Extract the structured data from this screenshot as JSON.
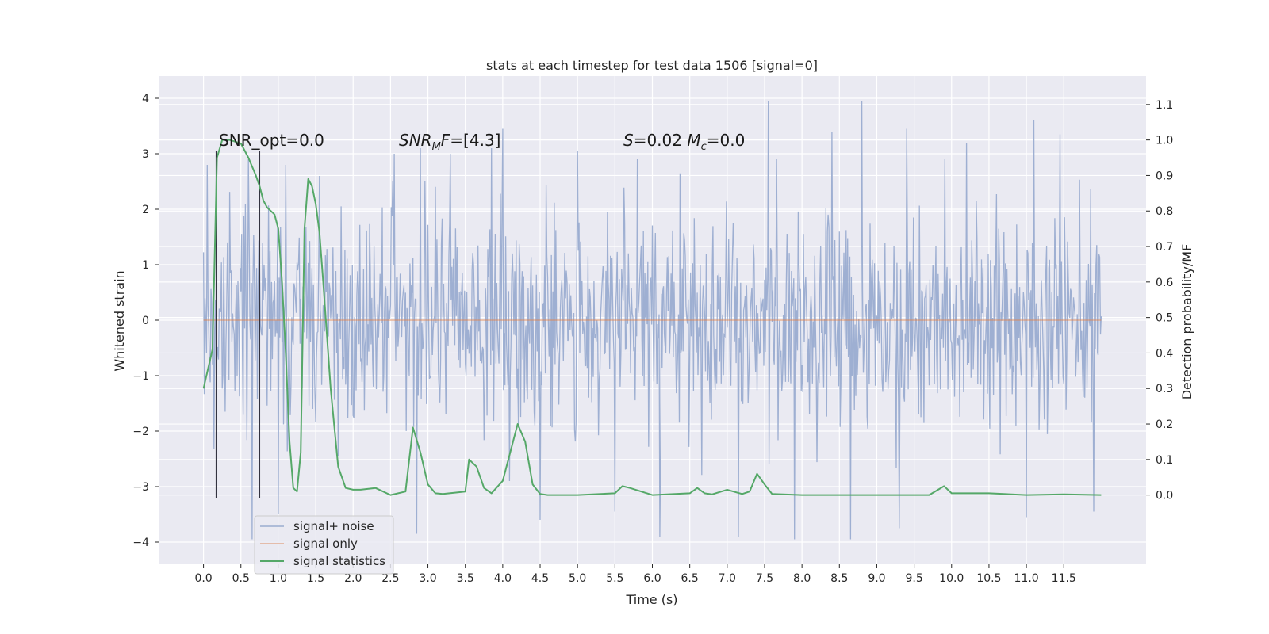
{
  "chart_data": {
    "type": "line",
    "title": "stats at each timestep for test data 1506 [signal=0]",
    "xlabel": "Time (s)",
    "ylabel_left": "Whitened strain",
    "ylabel_right": "Detection probability/MF",
    "xlim": [
      -0.6,
      12.6
    ],
    "ylim_left": [
      -4.4,
      4.4
    ],
    "ylim_right": [
      -0.195,
      1.18
    ],
    "x_ticks": [
      "0.0",
      "0.5",
      "1.0",
      "1.5",
      "2.0",
      "2.5",
      "3.0",
      "3.5",
      "4.0",
      "4.5",
      "5.0",
      "5.5",
      "6.0",
      "6.5",
      "7.0",
      "7.5",
      "8.0",
      "8.5",
      "9.0",
      "9.5",
      "10.0",
      "10.5",
      "11.0",
      "11.5"
    ],
    "y_ticks_left": [
      "4",
      "3",
      "2",
      "1",
      "0",
      "−1",
      "−2",
      "−3",
      "−4"
    ],
    "y_ticks_right": [
      "1.1",
      "1.0",
      "0.9",
      "0.8",
      "0.7",
      "0.6",
      "0.5",
      "0.4",
      "0.3",
      "0.2",
      "0.1",
      "0.0"
    ],
    "grid": true,
    "legend_position": "lower-left",
    "annotations": [
      {
        "label": "SNR_opt=0.0",
        "x": 0.2,
        "y": 3.05
      },
      {
        "label": "SNR_MF=[4.3]",
        "x": 2.6,
        "y": 3.05
      },
      {
        "label": "S=0.02   M_c=0.0",
        "x": 5.6,
        "y": 3.05
      }
    ],
    "vertical_lines": [
      0.17,
      0.75
    ],
    "series": [
      {
        "name": "signal+ noise",
        "color": "#9aacd0",
        "x_range": [
          0.0,
          12.0
        ],
        "envelope_dense": [
          -1.2,
          1.2
        ],
        "typical_extremes": [
          -2.6,
          2.6
        ],
        "peaks": [
          [
            0.05,
            2.8
          ],
          [
            0.6,
            2.9
          ],
          [
            1.1,
            2.8
          ],
          [
            1.55,
            2.6
          ],
          [
            2.55,
            3.0
          ],
          [
            2.9,
            3.1
          ],
          [
            3.3,
            3.0
          ],
          [
            3.85,
            3.1
          ],
          [
            4.0,
            3.45
          ],
          [
            5.0,
            3.05
          ],
          [
            5.8,
            2.9
          ],
          [
            7.55,
            3.95
          ],
          [
            8.4,
            3.4
          ],
          [
            8.8,
            3.95
          ],
          [
            9.4,
            3.45
          ],
          [
            10.2,
            3.2
          ],
          [
            11.1,
            3.6
          ],
          [
            11.45,
            3.35
          ],
          [
            0.65,
            -3.95
          ],
          [
            1.0,
            -3.5
          ],
          [
            2.85,
            -3.85
          ],
          [
            4.5,
            -3.6
          ],
          [
            5.5,
            -3.45
          ],
          [
            6.1,
            -3.9
          ],
          [
            7.15,
            -3.9
          ],
          [
            7.9,
            -3.95
          ],
          [
            8.65,
            -3.95
          ],
          [
            9.3,
            -3.75
          ],
          [
            11.0,
            -3.55
          ],
          [
            11.9,
            -3.45
          ]
        ]
      },
      {
        "name": "signal only",
        "color": "#dd8452",
        "x": [
          0.0,
          12.0
        ],
        "y": [
          0.0,
          0.0
        ]
      },
      {
        "name": "signal statistics",
        "color": "#55a868",
        "axis": "right",
        "x": [
          0.0,
          0.12,
          0.18,
          0.25,
          0.35,
          0.5,
          0.6,
          0.7,
          0.75,
          0.8,
          0.85,
          0.9,
          0.95,
          1.0,
          1.05,
          1.1,
          1.15,
          1.2,
          1.25,
          1.3,
          1.35,
          1.4,
          1.45,
          1.5,
          1.55,
          1.6,
          1.7,
          1.8,
          1.9,
          2.0,
          2.1,
          2.3,
          2.5,
          2.7,
          2.8,
          2.9,
          3.0,
          3.1,
          3.2,
          3.5,
          3.55,
          3.65,
          3.75,
          3.85,
          4.0,
          4.1,
          4.2,
          4.3,
          4.4,
          4.5,
          4.6,
          5.0,
          5.5,
          5.6,
          5.7,
          6.0,
          6.5,
          6.6,
          6.7,
          6.8,
          7.0,
          7.2,
          7.3,
          7.4,
          7.5,
          7.6,
          8.0,
          9.0,
          9.7,
          9.9,
          10.0,
          10.5,
          11.0,
          11.5,
          12.0
        ],
        "y": [
          0.3,
          0.41,
          0.95,
          1.0,
          1.0,
          0.99,
          0.95,
          0.9,
          0.87,
          0.83,
          0.81,
          0.8,
          0.79,
          0.75,
          0.6,
          0.4,
          0.15,
          0.02,
          0.01,
          0.12,
          0.75,
          0.89,
          0.87,
          0.82,
          0.74,
          0.6,
          0.3,
          0.08,
          0.02,
          0.015,
          0.015,
          0.02,
          0.0,
          0.01,
          0.19,
          0.12,
          0.03,
          0.005,
          0.003,
          0.01,
          0.1,
          0.08,
          0.02,
          0.005,
          0.04,
          0.12,
          0.2,
          0.15,
          0.03,
          0.003,
          0.0,
          0.0,
          0.005,
          0.025,
          0.02,
          0.0,
          0.005,
          0.02,
          0.005,
          0.002,
          0.015,
          0.003,
          0.01,
          0.06,
          0.03,
          0.003,
          0.0,
          0.0,
          0.0,
          0.025,
          0.005,
          0.005,
          0.0,
          0.002,
          0.0
        ]
      }
    ]
  }
}
